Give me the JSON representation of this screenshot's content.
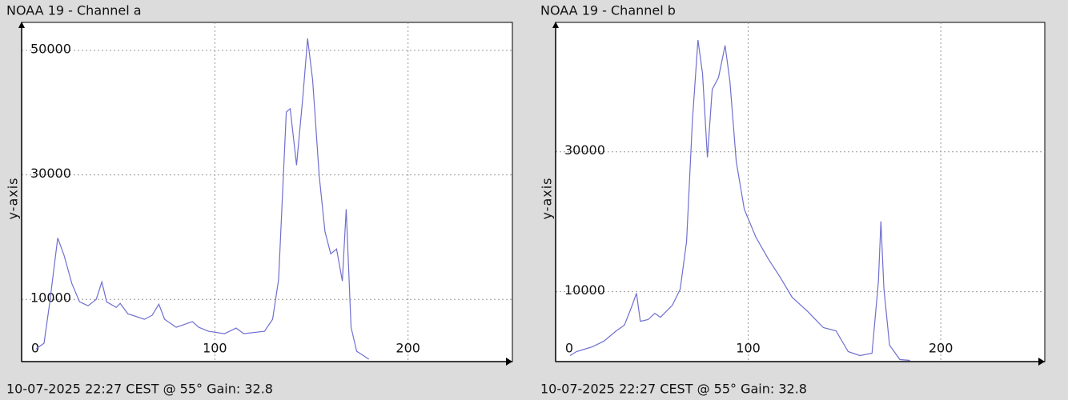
{
  "chart_data": [
    {
      "type": "line",
      "title": "NOAA 19 - Channel a",
      "ylabel": "y-axis",
      "caption": "10-07-2025 22:27 CEST @ 55° Gain: 32.8",
      "color": "#6f6fd0",
      "grid": true,
      "xlim": [
        0,
        254
      ],
      "ylim": [
        0,
        54500
      ],
      "xticks": [
        0,
        100,
        200
      ],
      "yticks": [
        10000,
        30000,
        50000
      ],
      "x": [
        7.5,
        11.6,
        14.5,
        18.7,
        22,
        26,
        30,
        34.4,
        38.6,
        41.5,
        44,
        49,
        51,
        55,
        63.5,
        67.6,
        71,
        74,
        80,
        88.4,
        91.7,
        96.7,
        105,
        111,
        115,
        125.7,
        129.9,
        133,
        137,
        139,
        142.3,
        145.6,
        148,
        150.6,
        154,
        157,
        160,
        163,
        166,
        168,
        170.5,
        173.4,
        179.7
      ],
      "values": [
        2050,
        2950,
        9360,
        19870,
        17050,
        12560,
        9600,
        8970,
        10000,
        12800,
        9600,
        8700,
        9360,
        7690,
        6800,
        7440,
        9230,
        6800,
        5510,
        6410,
        5510,
        4870,
        4490,
        5380,
        4490,
        4870,
        6800,
        13200,
        40100,
        40640,
        31540,
        42690,
        51920,
        45260,
        29870,
        20900,
        17310,
        18080,
        12950,
        24490,
        5510,
        1670,
        380
      ]
    },
    {
      "type": "line",
      "title": "NOAA 19 - Channel b",
      "ylabel": "y-axis",
      "caption": "10-07-2025 22:27 CEST @ 55° Gain: 32.8",
      "color": "#6f6fd0",
      "grid": true,
      "xlim": [
        0,
        254
      ],
      "ylim": [
        0,
        48500
      ],
      "xticks": [
        0,
        100,
        200
      ],
      "yticks": [
        10000,
        30000
      ],
      "x": [
        7.5,
        10.8,
        15,
        19,
        25,
        31.5,
        35.7,
        39.8,
        42,
        44,
        48,
        51.5,
        54.4,
        60.6,
        64.7,
        68,
        71,
        73.9,
        76.3,
        78.8,
        81.3,
        84.6,
        88,
        90.5,
        93.8,
        98,
        104,
        110.4,
        116.6,
        122.8,
        131,
        139,
        145.6,
        151.9,
        158,
        164.3,
        167.6,
        168.9,
        170.5,
        173.4,
        178.8,
        184
      ],
      "values": [
        860,
        1430,
        1770,
        2110,
        2910,
        4400,
        5200,
        8060,
        9770,
        5770,
        6000,
        6910,
        6340,
        8060,
        10340,
        17200,
        34340,
        46000,
        41200,
        29200,
        38910,
        40630,
        45200,
        40060,
        28630,
        21770,
        17770,
        14690,
        12060,
        9200,
        7140,
        4860,
        4400,
        1430,
        860,
        1200,
        11490,
        20060,
        10340,
        2340,
        290,
        170
      ]
    }
  ]
}
